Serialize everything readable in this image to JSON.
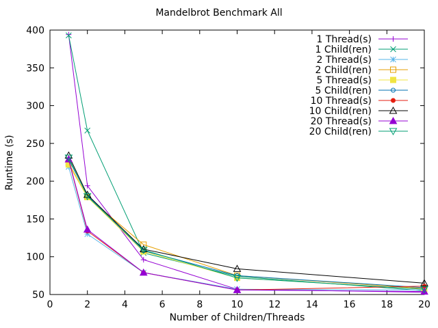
{
  "chart_data": {
    "type": "line",
    "title": "Mandelbrot Benchmark All",
    "xlabel": "Number of Children/Threads",
    "ylabel": "Runtime (s)",
    "xlim": [
      0,
      20
    ],
    "ylim": [
      50,
      400
    ],
    "xticks": [
      0,
      2,
      4,
      6,
      8,
      10,
      12,
      14,
      16,
      18,
      20
    ],
    "yticks": [
      50,
      100,
      150,
      200,
      250,
      300,
      350,
      400
    ],
    "grid": false,
    "legend_position": "top-right",
    "x": [
      1,
      2,
      5,
      10,
      20
    ],
    "series": [
      {
        "name": "1 Thread(s)",
        "color": "#9400d3",
        "marker": "plus",
        "values": [
          394,
          194,
          96,
          57,
          53
        ]
      },
      {
        "name": "1 Child(ren)",
        "color": "#009e73",
        "marker": "cross",
        "values": [
          393,
          267,
          105,
          74,
          55
        ]
      },
      {
        "name": "2 Thread(s)",
        "color": "#56b4e9",
        "marker": "star",
        "values": [
          219,
          130,
          79,
          57,
          56
        ]
      },
      {
        "name": "2 Child(ren)",
        "color": "#e69f00",
        "marker": "square-open",
        "values": [
          224,
          179,
          116,
          75,
          58
        ]
      },
      {
        "name": "5 Thread(s)",
        "color": "#f0e442",
        "marker": "square-filled",
        "values": [
          222,
          179,
          107,
          72,
          57
        ]
      },
      {
        "name": "5 Child(ren)",
        "color": "#0072b2",
        "marker": "circle-open",
        "values": [
          229,
          181,
          108,
          75,
          59
        ]
      },
      {
        "name": "10 Thread(s)",
        "color": "#e51e10",
        "marker": "circle-filled",
        "values": [
          228,
          134,
          79,
          56,
          61
        ]
      },
      {
        "name": "10 Child(ren)",
        "color": "#000000",
        "marker": "triangle-open",
        "values": [
          234,
          182,
          110,
          84,
          65
        ]
      },
      {
        "name": "20 Thread(s)",
        "color": "#9400d3",
        "marker": "triangle-filled",
        "values": [
          229,
          136,
          79,
          56,
          54
        ]
      },
      {
        "name": "20 Child(ren)",
        "color": "#009e73",
        "marker": "inverted-triangle-open",
        "values": [
          231,
          180,
          109,
          72,
          57
        ]
      }
    ]
  }
}
